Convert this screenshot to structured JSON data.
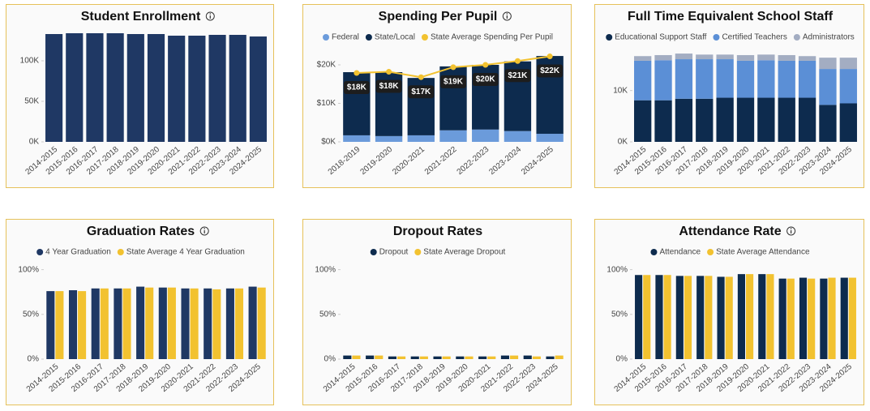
{
  "chart_data": [
    {
      "type": "bar",
      "title": "Student Enrollment",
      "info": true,
      "legend": false,
      "categories": [
        "2014-2015",
        "2015-2016",
        "2016-2017",
        "2017-2018",
        "2018-2019",
        "2019-2020",
        "2020-2021",
        "2021-2022",
        "2022-2023",
        "2023-2024",
        "2024-2025"
      ],
      "series": [
        {
          "color": "#1f3864",
          "values": [
            133000,
            134000,
            134000,
            134000,
            133000,
            133000,
            131000,
            131000,
            132000,
            132000,
            130000
          ]
        }
      ],
      "ylim": [
        0,
        142000
      ],
      "yticks": [
        {
          "value": 0,
          "label": "0K"
        },
        {
          "value": 50000,
          "label": "50K"
        },
        {
          "value": 100000,
          "label": "100K"
        }
      ]
    },
    {
      "type": "bar",
      "title": "Spending Per Pupil",
      "info": true,
      "legend": true,
      "stacked": true,
      "categories": [
        "2018-2019",
        "2019-2020",
        "2020-2021",
        "2021-2022",
        "2022-2023",
        "2023-2024",
        "2024-2025"
      ],
      "series": [
        {
          "name": "Federal",
          "color": "#6b9bdb",
          "values": [
            1700,
            1500,
            1700,
            3000,
            3200,
            2800,
            2100
          ]
        },
        {
          "name": "State/Local",
          "color": "#0d2b4e",
          "values": [
            16400,
            16600,
            14900,
            16600,
            16800,
            18100,
            20200
          ]
        },
        {
          "name": "State Average Spending Per Pupil",
          "type": "line",
          "color": "#f2c230",
          "values": [
            17900,
            18200,
            16800,
            19400,
            20000,
            21000,
            22200
          ],
          "value_labels": [
            "$18K",
            "$18K",
            "$17K",
            "$19K",
            "$20K",
            "$21K",
            "$22K"
          ]
        }
      ],
      "ylim": [
        0,
        24000
      ],
      "yticks": [
        {
          "value": 0,
          "label": "$0K"
        },
        {
          "value": 10000,
          "label": "$10K"
        },
        {
          "value": 20000,
          "label": "$20K"
        }
      ]
    },
    {
      "type": "bar",
      "title": "Full Time Equivalent School Staff",
      "info": false,
      "legend": true,
      "stacked": true,
      "categories": [
        "2014-2015",
        "2015-2016",
        "2016-2017",
        "2017-2018",
        "2018-2019",
        "2019-2020",
        "2020-2021",
        "2021-2022",
        "2022-2023",
        "2023-2024",
        "2024-2025"
      ],
      "series": [
        {
          "name": "Educational Support Staff",
          "color": "#0d2b4e",
          "values": [
            8100,
            8100,
            8400,
            8400,
            8600,
            8600,
            8600,
            8600,
            8600,
            7200,
            7500
          ]
        },
        {
          "name": "Certified Teachers",
          "color": "#5b8fd6",
          "values": [
            7700,
            7800,
            7700,
            7700,
            7500,
            7200,
            7300,
            7200,
            7200,
            7000,
            6700
          ]
        },
        {
          "name": "Administrators",
          "color": "#a3adc2",
          "values": [
            900,
            1000,
            1100,
            900,
            900,
            1100,
            1100,
            1100,
            900,
            2200,
            2200
          ]
        }
      ],
      "ylim": [
        0,
        18000
      ],
      "yticks": [
        {
          "value": 0,
          "label": "0K"
        },
        {
          "value": 10000,
          "label": "10K"
        }
      ]
    },
    {
      "type": "bar",
      "title": "Graduation Rates",
      "info": true,
      "legend": true,
      "stacked": false,
      "categories": [
        "2014-2015",
        "2015-2016",
        "2016-2017",
        "2017-2018",
        "2018-2019",
        "2019-2020",
        "2020-2021",
        "2021-2022",
        "2022-2023",
        "2024-2025"
      ],
      "series": [
        {
          "name": "4 Year Graduation",
          "color": "#1f3864",
          "values": [
            76,
            77,
            79,
            79,
            81,
            80,
            79,
            79,
            79,
            81
          ]
        },
        {
          "name": "State Average 4 Year Graduation",
          "color": "#f2c230",
          "values": [
            76,
            76,
            79,
            79,
            80,
            80,
            79,
            78,
            79,
            80
          ]
        }
      ],
      "ylim": [
        0,
        106
      ],
      "yticks": [
        {
          "value": 0,
          "label": "0%"
        },
        {
          "value": 50,
          "label": "50%"
        },
        {
          "value": 100,
          "label": "100%"
        }
      ]
    },
    {
      "type": "bar",
      "title": "Dropout Rates",
      "info": false,
      "legend": true,
      "stacked": false,
      "categories": [
        "2014-2015",
        "2015-2016",
        "2016-2017",
        "2017-2018",
        "2018-2019",
        "2019-2020",
        "2020-2021",
        "2021-2022",
        "2022-2023",
        "2024-2025"
      ],
      "series": [
        {
          "name": "Dropout",
          "color": "#0d2b4e",
          "values": [
            4,
            4,
            3,
            3,
            3,
            3,
            3,
            4,
            4,
            3
          ]
        },
        {
          "name": "State Average Dropout",
          "color": "#f2c230",
          "values": [
            4,
            4,
            3,
            3,
            3,
            3,
            3,
            4,
            3,
            4
          ]
        }
      ],
      "ylim": [
        0,
        106
      ],
      "yticks": [
        {
          "value": 0,
          "label": "0%"
        },
        {
          "value": 50,
          "label": "50%"
        },
        {
          "value": 100,
          "label": "100%"
        }
      ]
    },
    {
      "type": "bar",
      "title": "Attendance Rate",
      "info": true,
      "legend": true,
      "stacked": false,
      "categories": [
        "2014-2015",
        "2015-2016",
        "2016-2017",
        "2017-2018",
        "2018-2019",
        "2019-2020",
        "2020-2021",
        "2021-2022",
        "2022-2023",
        "2023-2024",
        "2024-2025"
      ],
      "series": [
        {
          "name": "Attendance",
          "color": "#0d2b4e",
          "values": [
            94,
            94,
            93,
            93,
            92,
            95,
            95,
            90,
            91,
            90,
            91
          ]
        },
        {
          "name": "State Average Attendance",
          "color": "#f2c230",
          "values": [
            94,
            94,
            93,
            93,
            92,
            95,
            95,
            90,
            90,
            91,
            91
          ]
        }
      ],
      "ylim": [
        0,
        106
      ],
      "yticks": [
        {
          "value": 0,
          "label": "0%"
        },
        {
          "value": 50,
          "label": "50%"
        },
        {
          "value": 100,
          "label": "100%"
        }
      ]
    }
  ]
}
